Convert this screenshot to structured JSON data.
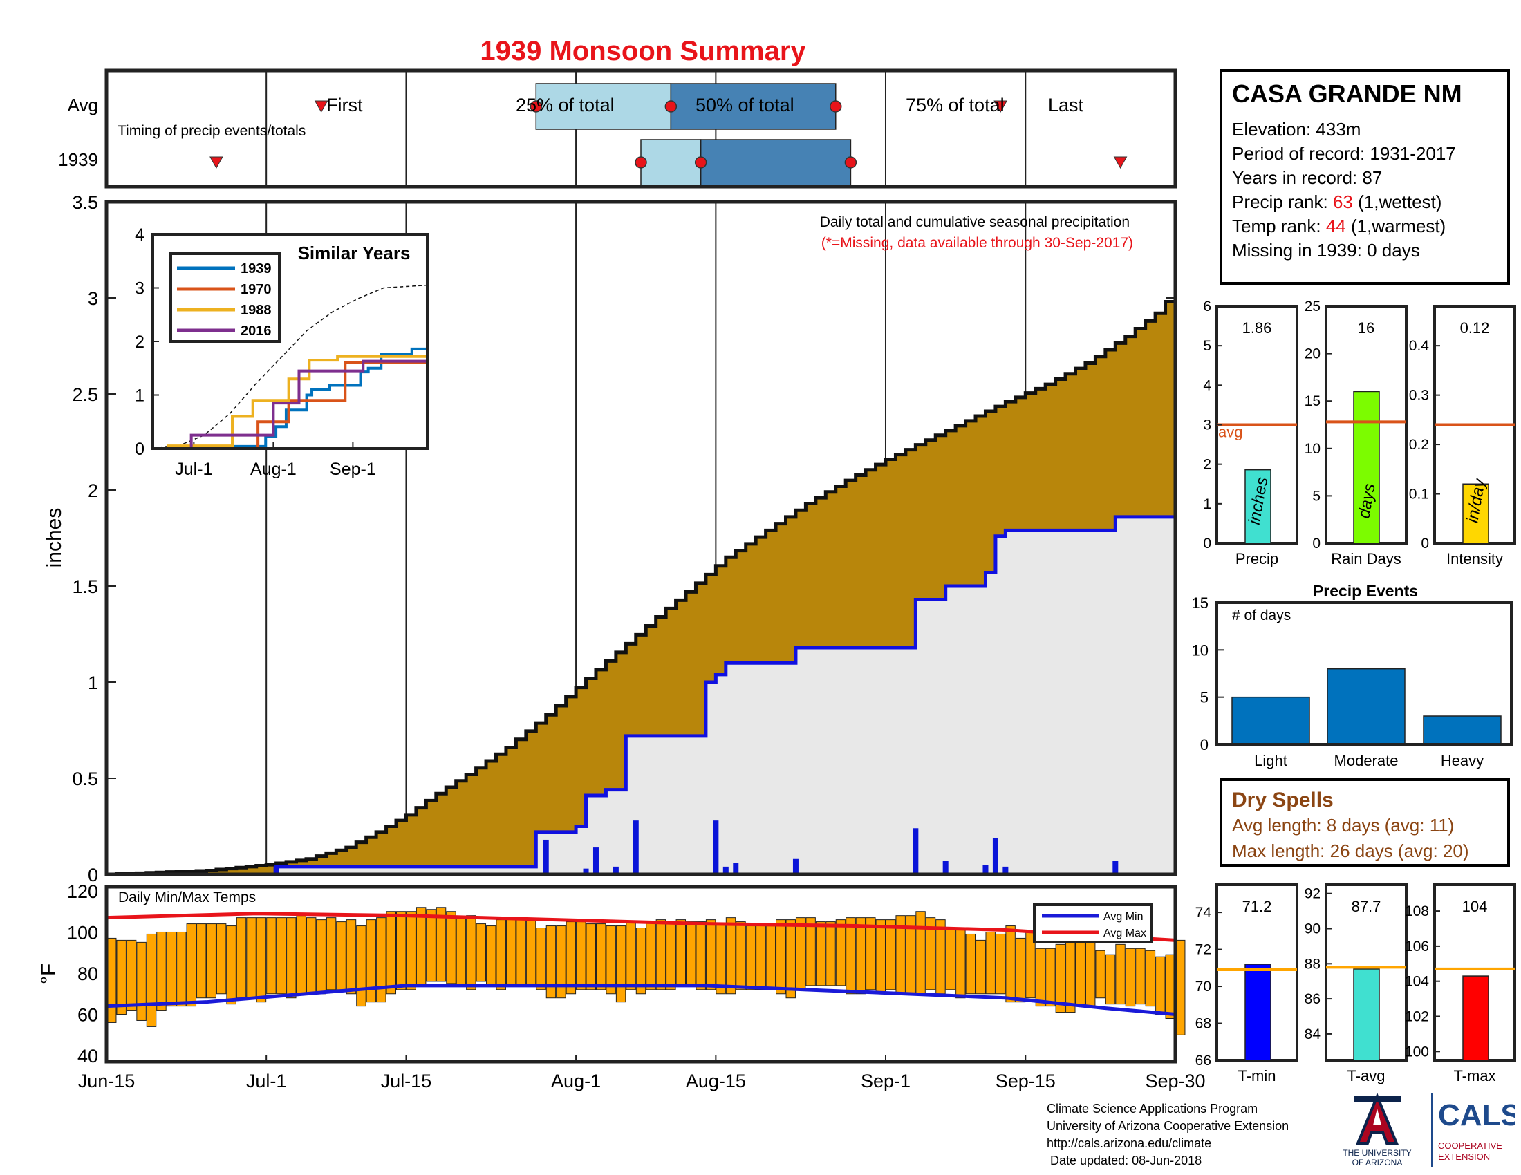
{
  "title": "1939 Monsoon Summary",
  "station": {
    "name": "CASA GRANDE NM",
    "elevation": "Elevation: 433m",
    "period": "Period of record: 1931-2017",
    "years": "Years in record: 87",
    "precip_rank_label": "Precip rank: ",
    "precip_rank_value": "63",
    "precip_rank_note": " (1,wettest)",
    "temp_rank_label": "Temp rank: ",
    "temp_rank_value": "44",
    "temp_rank_note": " (1,warmest)",
    "missing": "Missing in 1939: 0 days"
  },
  "timing": {
    "caption": "Timing of precip events/totals",
    "row_avg": "Avg",
    "row_year": "1939",
    "label_first": "First",
    "label_25": "25% of total",
    "label_50": "50% of total",
    "label_75": "75% of total",
    "label_last": "Last"
  },
  "main": {
    "ylabel": "inches",
    "note": "Daily total and cumulative seasonal precipitation",
    "missing_note": "(*=Missing, data available through 30-Sep-2017)",
    "yticks": [
      "0",
      "0.5",
      "1",
      "1.5",
      "2",
      "2.5",
      "3",
      "3.5"
    ],
    "xticks": [
      "Jun-15",
      "Jul-1",
      "Jul-15",
      "Aug-1",
      "Aug-15",
      "Sep-1",
      "Sep-15",
      "Sep-30"
    ]
  },
  "inset": {
    "title": "Similar Years",
    "years": [
      "1939",
      "1970",
      "1988",
      "2016"
    ],
    "yticks": [
      "0",
      "1",
      "2",
      "3",
      "4"
    ],
    "xticks": [
      "Jul-1",
      "Aug-1",
      "Sep-1"
    ]
  },
  "temp": {
    "ylabel": "°F",
    "caption": "Daily Min/Max Temps",
    "legend_min": "Avg Min",
    "legend_max": "Avg Max",
    "yticks": [
      "40",
      "60",
      "80",
      "100",
      "120"
    ]
  },
  "mini_precip": {
    "value": "1.86",
    "unit": "inches",
    "xlabel": "Precip",
    "avg_label": "avg",
    "yticks": [
      "0",
      "1",
      "2",
      "3",
      "4",
      "5",
      "6"
    ]
  },
  "mini_days": {
    "value": "16",
    "unit": "days",
    "xlabel": "Rain Days",
    "yticks": [
      "0",
      "5",
      "10",
      "15",
      "20",
      "25"
    ]
  },
  "mini_intensity": {
    "value": "0.12",
    "unit": "in/day",
    "xlabel": "Intensity",
    "yticks": [
      "0",
      "0.1",
      "0.2",
      "0.3",
      "0.4"
    ]
  },
  "events": {
    "title": "Precip Events",
    "inner_label": "# of days",
    "categories": [
      "Light",
      "Moderate",
      "Heavy"
    ],
    "yticks": [
      "0",
      "5",
      "10",
      "15"
    ]
  },
  "dry_spells": {
    "title": "Dry Spells",
    "avg": "Avg length: 8 days (avg: 11)",
    "max": "Max length: 26 days (avg: 20)"
  },
  "mini_tmin": {
    "value": "71.2",
    "xlabel": "T-min",
    "yticks": [
      "66",
      "68",
      "70",
      "72",
      "74"
    ]
  },
  "mini_tavg": {
    "value": "87.7",
    "xlabel": "T-avg",
    "yticks": [
      "84",
      "86",
      "88",
      "90",
      "92"
    ]
  },
  "mini_tmax": {
    "value": "104",
    "xlabel": "T-max",
    "yticks": [
      "100",
      "102",
      "104",
      "106",
      "108"
    ]
  },
  "footer": {
    "line1": "Climate Science Applications Program",
    "line2": "University of Arizona Cooperative Extension",
    "line3": "http://cals.arizona.edu/climate",
    "line4": " Date updated: 08-Jun-2018"
  },
  "logos": {
    "ua_line1": "THE UNIVERSITY",
    "ua_line2": "OF ARIZONA",
    "cals": "CALS",
    "cals_line1": "COOPERATIVE",
    "cals_line2": "EXTENSION"
  },
  "colors": {
    "title": "#e8141a",
    "avg_fill": "#b8860b",
    "obs_fill": "#e8e8e8",
    "obs_line": "#1010e0",
    "daily_bar": "#0a14d8",
    "temp_bar": "#ffa500",
    "avg_max": "#e8141a",
    "avg_min": "#1a1ad8",
    "box_light": "#add8e6",
    "box_dark": "#4682b4",
    "marker": "#e8141a",
    "avg_line": "#d95319",
    "temp_avg_line": "#ffa500",
    "event_bar": "#0072bd"
  },
  "chart_data": [
    {
      "type": "timing",
      "x_unit": "days after Jun-15",
      "avg": {
        "first": 21.5,
        "p25": 43,
        "p50": 56.5,
        "p75": 73,
        "last": 89.5
      },
      "year": {
        "first": 11,
        "p25": 53.5,
        "p50": 59.5,
        "p75": 74.5,
        "last": 101.5
      }
    },
    {
      "type": "area",
      "title": "Daily total and cumulative seasonal precipitation",
      "ylabel": "inches",
      "x_unit": "days after Jun-15",
      "xlim": [
        0,
        107
      ],
      "ylim": [
        0,
        3.5
      ],
      "avg_cumulative": [
        [
          0,
          0.0
        ],
        [
          5,
          0.01
        ],
        [
          10,
          0.02
        ],
        [
          16,
          0.05
        ],
        [
          20,
          0.08
        ],
        [
          24,
          0.14
        ],
        [
          27,
          0.22
        ],
        [
          30,
          0.31
        ],
        [
          33,
          0.42
        ],
        [
          36,
          0.52
        ],
        [
          40,
          0.66
        ],
        [
          44,
          0.83
        ],
        [
          48,
          1.02
        ],
        [
          52,
          1.2
        ],
        [
          55,
          1.34
        ],
        [
          58,
          1.47
        ],
        [
          62,
          1.65
        ],
        [
          66,
          1.79
        ],
        [
          70,
          1.93
        ],
        [
          74,
          2.05
        ],
        [
          78,
          2.16
        ],
        [
          82,
          2.26
        ],
        [
          86,
          2.36
        ],
        [
          90,
          2.46
        ],
        [
          94,
          2.55
        ],
        [
          98,
          2.66
        ],
        [
          102,
          2.8
        ],
        [
          105,
          2.92
        ],
        [
          107,
          3.04
        ]
      ],
      "obs_cumulative": [
        [
          0,
          0.0
        ],
        [
          16,
          0.0
        ],
        [
          17,
          0.04
        ],
        [
          43,
          0.04
        ],
        [
          43,
          0.22
        ],
        [
          47,
          0.22
        ],
        [
          47,
          0.25
        ],
        [
          48,
          0.25
        ],
        [
          48,
          0.41
        ],
        [
          50,
          0.41
        ],
        [
          50,
          0.44
        ],
        [
          52,
          0.44
        ],
        [
          52,
          0.72
        ],
        [
          60,
          0.72
        ],
        [
          60,
          1.0
        ],
        [
          61,
          1.0
        ],
        [
          61,
          1.04
        ],
        [
          62,
          1.04
        ],
        [
          62,
          1.1
        ],
        [
          69,
          1.1
        ],
        [
          69,
          1.18
        ],
        [
          81,
          1.18
        ],
        [
          81,
          1.43
        ],
        [
          84,
          1.43
        ],
        [
          84,
          1.5
        ],
        [
          88,
          1.5
        ],
        [
          88,
          1.57
        ],
        [
          89,
          1.57
        ],
        [
          89,
          1.76
        ],
        [
          90,
          1.76
        ],
        [
          90,
          1.79
        ],
        [
          101,
          1.79
        ],
        [
          101,
          1.86
        ],
        [
          107,
          1.86
        ]
      ],
      "daily": [
        [
          17,
          0.04
        ],
        [
          44,
          0.18
        ],
        [
          48,
          0.03
        ],
        [
          49,
          0.14
        ],
        [
          51,
          0.04
        ],
        [
          53,
          0.28
        ],
        [
          61,
          0.28
        ],
        [
          62,
          0.04
        ],
        [
          63,
          0.06
        ],
        [
          69,
          0.08
        ],
        [
          81,
          0.24
        ],
        [
          84,
          0.07
        ],
        [
          88,
          0.05
        ],
        [
          89,
          0.19
        ],
        [
          90,
          0.04
        ],
        [
          101,
          0.07
        ]
      ]
    },
    {
      "type": "line",
      "title": "Similar Years",
      "x_unit": "days after Jun-15",
      "xlim": [
        0,
        107
      ],
      "ylim": [
        0,
        4
      ],
      "series": [
        {
          "name": "1939",
          "color": "#0072bd",
          "points": [
            [
              0,
              0
            ],
            [
              16,
              0
            ],
            [
              17,
              0.04
            ],
            [
              43,
              0.04
            ],
            [
              44,
              0.22
            ],
            [
              48,
              0.41
            ],
            [
              52,
              0.72
            ],
            [
              60,
              1.0
            ],
            [
              62,
              1.1
            ],
            [
              69,
              1.18
            ],
            [
              81,
              1.43
            ],
            [
              84,
              1.5
            ],
            [
              89,
              1.76
            ],
            [
              101,
              1.86
            ],
            [
              107,
              1.86
            ]
          ]
        },
        {
          "name": "1970",
          "color": "#d95319",
          "points": [
            [
              0,
              0
            ],
            [
              40,
              0
            ],
            [
              41,
              0.5
            ],
            [
              52,
              0.5
            ],
            [
              53,
              0.9
            ],
            [
              74,
              0.9
            ],
            [
              75,
              1.6
            ],
            [
              107,
              1.6
            ]
          ]
        },
        {
          "name": "1988",
          "color": "#edb120",
          "points": [
            [
              0,
              0
            ],
            [
              6,
              0.05
            ],
            [
              30,
              0.05
            ],
            [
              31,
              0.6
            ],
            [
              38,
              0.6
            ],
            [
              39,
              0.9
            ],
            [
              52,
              0.9
            ],
            [
              53,
              1.3
            ],
            [
              60,
              1.3
            ],
            [
              61,
              1.65
            ],
            [
              71,
              1.65
            ],
            [
              72,
              1.72
            ],
            [
              107,
              1.72
            ]
          ]
        },
        {
          "name": "2016",
          "color": "#7e2f8e",
          "points": [
            [
              0,
              0
            ],
            [
              14,
              0
            ],
            [
              15,
              0.25
            ],
            [
              46,
              0.25
            ],
            [
              47,
              0.85
            ],
            [
              56,
              0.85
            ],
            [
              57,
              1.45
            ],
            [
              81,
              1.45
            ],
            [
              82,
              1.63
            ],
            [
              107,
              1.63
            ]
          ]
        }
      ],
      "avg_dashed": [
        [
          0,
          0
        ],
        [
          10,
          0.05
        ],
        [
          20,
          0.25
        ],
        [
          30,
          0.65
        ],
        [
          40,
          1.2
        ],
        [
          50,
          1.7
        ],
        [
          60,
          2.2
        ],
        [
          70,
          2.55
        ],
        [
          80,
          2.8
        ],
        [
          90,
          3.0
        ],
        [
          107,
          3.05
        ]
      ]
    },
    {
      "type": "bar",
      "title": "Daily Min/Max Temps",
      "x_unit": "days after Jun-15",
      "ylim": [
        40,
        120
      ],
      "tmax": [
        97,
        96,
        96,
        95,
        99,
        100,
        100,
        100,
        104,
        104,
        104,
        104,
        103,
        107,
        107,
        107,
        107,
        107,
        107,
        108,
        107,
        106,
        107,
        105,
        106,
        103,
        106,
        107,
        110,
        110,
        110,
        112,
        111,
        112,
        110,
        107,
        108,
        104,
        103,
        106,
        107,
        106,
        106,
        102,
        103,
        103,
        105,
        105,
        104,
        104,
        103,
        103,
        105,
        102,
        105,
        106,
        105,
        106,
        105,
        105,
        106,
        104,
        107,
        105,
        103,
        104,
        103,
        106,
        106,
        107,
        107,
        105,
        105,
        106,
        107,
        107,
        107,
        106,
        106,
        108,
        108,
        110,
        107,
        106,
        102,
        102,
        99,
        96,
        100,
        99,
        103,
        97,
        100,
        92,
        92,
        94,
        96,
        95,
        96,
        91,
        89,
        94,
        92,
        92,
        91,
        88,
        89,
        96
      ],
      "tmin": [
        56,
        60,
        62,
        57,
        54,
        62,
        64,
        64,
        64,
        68,
        68,
        70,
        65,
        68,
        68,
        66,
        70,
        70,
        68,
        70,
        70,
        70,
        72,
        72,
        70,
        64,
        66,
        66,
        70,
        72,
        72,
        74,
        76,
        76,
        75,
        74,
        72,
        76,
        74,
        72,
        74,
        74,
        74,
        72,
        68,
        68,
        70,
        72,
        72,
        72,
        70,
        66,
        72,
        70,
        72,
        72,
        72,
        74,
        74,
        72,
        72,
        70,
        70,
        72,
        72,
        72,
        72,
        70,
        68,
        72,
        74,
        74,
        74,
        74,
        70,
        70,
        72,
        70,
        72,
        70,
        70,
        70,
        72,
        70,
        72,
        68,
        70,
        70,
        70,
        70,
        66,
        66,
        68,
        64,
        64,
        61,
        61,
        64,
        64,
        68,
        65,
        65,
        64,
        65,
        64,
        60,
        58,
        50
      ],
      "avg_max": [
        [
          0,
          107
        ],
        [
          15,
          109
        ],
        [
          30,
          108
        ],
        [
          45,
          106
        ],
        [
          60,
          104
        ],
        [
          75,
          103
        ],
        [
          90,
          101
        ],
        [
          100,
          98
        ],
        [
          107,
          96
        ]
      ],
      "avg_min": [
        [
          0,
          64
        ],
        [
          10,
          66
        ],
        [
          20,
          70
        ],
        [
          30,
          74
        ],
        [
          45,
          74
        ],
        [
          60,
          74
        ],
        [
          70,
          72
        ],
        [
          80,
          70
        ],
        [
          90,
          68
        ],
        [
          100,
          63
        ],
        [
          107,
          60
        ]
      ]
    },
    {
      "type": "bar",
      "categories": [
        "Precip"
      ],
      "values": [
        1.86
      ],
      "avg": 3.0,
      "ylim": [
        0,
        6
      ],
      "color": "#40e0d0"
    },
    {
      "type": "bar",
      "categories": [
        "Rain Days"
      ],
      "values": [
        16
      ],
      "avg": 12.8,
      "ylim": [
        0,
        25
      ],
      "color": "#7cfc00"
    },
    {
      "type": "bar",
      "categories": [
        "Intensity"
      ],
      "values": [
        0.12
      ],
      "avg": 0.24,
      "ylim": [
        0,
        0.48
      ],
      "color": "#ffd700"
    },
    {
      "type": "bar",
      "title": "Precip Events",
      "categories": [
        "Light",
        "Moderate",
        "Heavy"
      ],
      "values": [
        5,
        8,
        3
      ],
      "ylim": [
        0,
        15
      ]
    },
    {
      "type": "bar",
      "categories": [
        "T-min"
      ],
      "values": [
        71.2
      ],
      "avg": 70.9,
      "ylim": [
        66,
        75.5
      ],
      "color": "#0000ff"
    },
    {
      "type": "bar",
      "categories": [
        "T-avg"
      ],
      "values": [
        87.7
      ],
      "avg": 87.8,
      "ylim": [
        82.5,
        92.5
      ],
      "color": "#40e0d0"
    },
    {
      "type": "bar",
      "categories": [
        "T-max"
      ],
      "values": [
        104.3
      ],
      "avg": 104.7,
      "ylim": [
        99.5,
        109.5
      ],
      "color": "#ff0000"
    }
  ]
}
